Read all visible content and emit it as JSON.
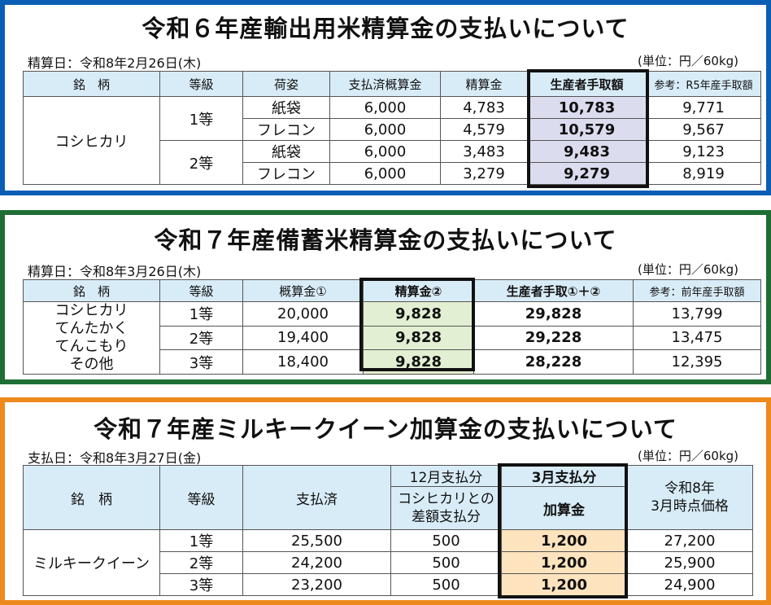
{
  "colors": {
    "panel1_border": "#0a5fb4",
    "panel2_border": "#1e6e34",
    "panel3_border": "#ee8a1c",
    "header_bg": "#d8ecf7",
    "highlight1": "#dcdcef",
    "highlight2": "#e2efd2",
    "highlight3": "#fde3be"
  },
  "panel1": {
    "title": "令和６年産輸出用米精算金の支払いについて",
    "date": "精算日：令和8年2月26日(木)",
    "unit": "(単位：円／60kg)",
    "headers": [
      "銘　柄",
      "等級",
      "荷姿",
      "支払済概算金",
      "精算金",
      "生産者手取額",
      "参考：R5年産手取額"
    ],
    "brand": "コシヒカリ",
    "grades": [
      "1等",
      "2等"
    ],
    "rows": [
      {
        "pack": "紙袋",
        "paid": "6,000",
        "settle": "4,783",
        "net": "10,783",
        "ref": "9,771"
      },
      {
        "pack": "フレコン",
        "paid": "6,000",
        "settle": "4,579",
        "net": "10,579",
        "ref": "9,567"
      },
      {
        "pack": "紙袋",
        "paid": "6,000",
        "settle": "3,483",
        "net": "9,483",
        "ref": "9,123"
      },
      {
        "pack": "フレコン",
        "paid": "6,000",
        "settle": "3,279",
        "net": "9,279",
        "ref": "8,919"
      }
    ]
  },
  "panel2": {
    "title": "令和７年産備蓄米精算金の支払いについて",
    "date": "精算日：令和8年3月26日(木)",
    "unit": "(単位：円／60kg)",
    "headers": [
      "銘　柄",
      "等級",
      "概算金①",
      "精算金②",
      "生産者手取①＋②",
      "参考：前年産手取額"
    ],
    "brands": [
      "コシヒカリ",
      "てんたかく",
      "てんこもり",
      "その他"
    ],
    "rows": [
      {
        "grade": "1等",
        "prov": "20,000",
        "settle": "9,828",
        "net": "29,828",
        "ref": "13,799"
      },
      {
        "grade": "2等",
        "prov": "19,400",
        "settle": "9,828",
        "net": "29,228",
        "ref": "13,475"
      },
      {
        "grade": "3等",
        "prov": "18,400",
        "settle": "9,828",
        "net": "28,228",
        "ref": "12,395"
      }
    ]
  },
  "panel3": {
    "title": "令和７年産ミルキークイーン加算金の支払いについて",
    "date": "支払日：令和8年3月27日(金)",
    "unit": "(単位：円／60kg)",
    "headers": {
      "brand": "銘　柄",
      "grade": "等級",
      "paid": "支払済",
      "dec_group": "12月支払分",
      "dec_sub_line1": "コシヒカリとの",
      "dec_sub_line2": "差額支払分",
      "mar_group": "3月支払分",
      "mar_sub": "加算金",
      "price_line1": "令和8年",
      "price_line2": "3月時点価格"
    },
    "brand": "ミルキークイーン",
    "rows": [
      {
        "grade": "1等",
        "paid": "25,500",
        "dec": "500",
        "add": "1,200",
        "price": "27,200"
      },
      {
        "grade": "2等",
        "paid": "24,200",
        "dec": "500",
        "add": "1,200",
        "price": "25,900"
      },
      {
        "grade": "3等",
        "paid": "23,200",
        "dec": "500",
        "add": "1,200",
        "price": "24,900"
      }
    ]
  }
}
